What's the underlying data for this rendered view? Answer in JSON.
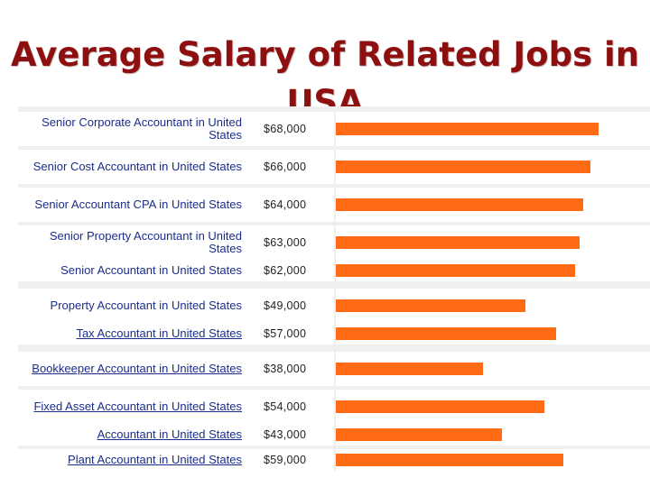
{
  "title": {
    "line1": "Average Salary of Related Jobs in",
    "line2": "USA"
  },
  "colors": {
    "title": "#8e0f0f",
    "bar": "#ff6a13",
    "link": "#1a2d8c"
  },
  "chart_data": {
    "type": "bar",
    "orientation": "horizontal",
    "title": "Average Salary of Related Jobs in USA",
    "categories": [
      "Senior Corporate Accountant in United States",
      "Senior Cost Accountant in United States",
      "Senior Accountant CPA in United States",
      "Senior Property Accountant in United States",
      "Senior Accountant in United States",
      "Property Accountant in United States",
      "Tax Accountant in United States",
      "Bookkeeper Accountant in United States",
      "Fixed Asset Accountant in United States",
      "Accountant in United States",
      "Plant Accountant in United States"
    ],
    "values": [
      68000,
      66000,
      64000,
      63000,
      62000,
      49000,
      57000,
      38000,
      54000,
      43000,
      59000
    ],
    "value_labels": [
      "$68,000",
      "$66,000",
      "$64,000",
      "$63,000",
      "$62,000",
      "$49,000",
      "$57,000",
      "$38,000",
      "$54,000",
      "$43,000",
      "$59,000"
    ],
    "xlim": [
      0,
      68000
    ],
    "underlined": [
      false,
      false,
      false,
      false,
      false,
      false,
      true,
      true,
      true,
      true,
      true
    ]
  }
}
